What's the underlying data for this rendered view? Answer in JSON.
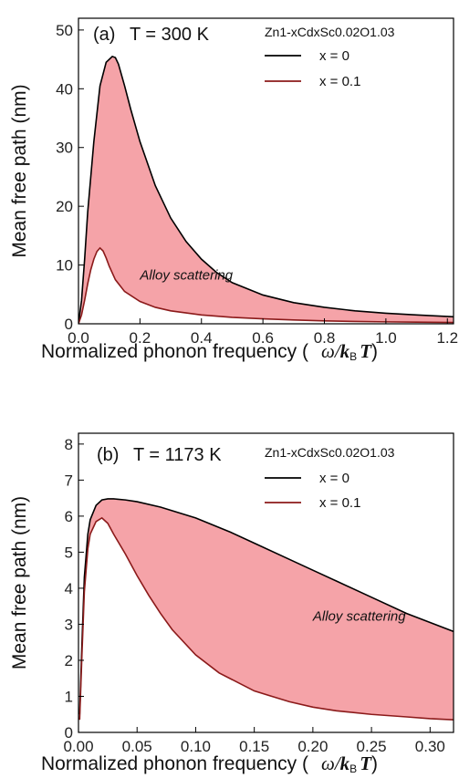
{
  "chart_data": [
    {
      "type": "area",
      "panel_label": "(a)",
      "condition": "T = 300 K",
      "legend_title": "Zn1-xCdxSc0.02O1.03",
      "ylabel": "Mean free path (nm)",
      "xlabel": "Normalized phonon frequency (",
      "xlabel_symbol": {
        "omega": "ω",
        "slash": "/",
        "k": "k",
        "sub": "B",
        "T": "T",
        "close": ")"
      },
      "xlim": [
        0,
        1.22
      ],
      "ylim": [
        0,
        52
      ],
      "xticks": [
        0,
        0.2,
        0.4,
        0.6,
        0.8,
        1.0,
        1.2
      ],
      "xtick_labels": [
        "0.0",
        "0.2",
        "0.4",
        "0.6",
        "0.8",
        "1.0",
        "1.2"
      ],
      "yticks": [
        0,
        10,
        20,
        30,
        40,
        50
      ],
      "ytick_labels": [
        "0",
        "10",
        "20",
        "30",
        "40",
        "50"
      ],
      "annotation": "Alloy scattering",
      "fill_color": "#f5a3a8",
      "series": [
        {
          "name": "x = 0",
          "color": "#000000",
          "x": [
            0,
            0.01,
            0.02,
            0.03,
            0.05,
            0.07,
            0.09,
            0.11,
            0.12,
            0.13,
            0.15,
            0.17,
            0.2,
            0.25,
            0.3,
            0.35,
            0.4,
            0.45,
            0.5,
            0.6,
            0.7,
            0.8,
            0.9,
            1.0,
            1.1,
            1.22
          ],
          "y": [
            0,
            4,
            11,
            19,
            31,
            40.5,
            44.5,
            45.5,
            45.3,
            44.2,
            40.5,
            36.5,
            31,
            23.5,
            18,
            14,
            11,
            8.7,
            7,
            4.9,
            3.6,
            2.8,
            2.2,
            1.8,
            1.5,
            1.2
          ]
        },
        {
          "name": "x = 0.1",
          "color": "#8b1a1a",
          "x": [
            0,
            0.01,
            0.02,
            0.03,
            0.04,
            0.05,
            0.06,
            0.07,
            0.08,
            0.09,
            0.1,
            0.12,
            0.15,
            0.2,
            0.25,
            0.3,
            0.4,
            0.5,
            0.6,
            0.7,
            0.8,
            0.9,
            1.0,
            1.1,
            1.22
          ],
          "y": [
            0,
            1.5,
            4,
            6.8,
            9.2,
            11,
            12.3,
            12.9,
            12.4,
            11.2,
            9.8,
            7.5,
            5.5,
            3.8,
            2.8,
            2.2,
            1.5,
            1.1,
            0.85,
            0.65,
            0.5,
            0.4,
            0.33,
            0.28,
            0.22
          ]
        }
      ]
    },
    {
      "type": "area",
      "panel_label": "(b)",
      "condition": "T = 1173 K",
      "legend_title": "Zn1-xCdxSc0.02O1.03",
      "ylabel": "Mean free path (nm)",
      "xlabel": "Normalized phonon frequency (",
      "xlabel_symbol": {
        "omega": "ω",
        "slash": "/",
        "k": "k",
        "sub": "B",
        "T": "T",
        "close": ")"
      },
      "xlim": [
        0,
        0.32
      ],
      "ylim": [
        0,
        8.3
      ],
      "xticks": [
        0,
        0.05,
        0.1,
        0.15,
        0.2,
        0.25,
        0.3
      ],
      "xtick_labels": [
        "0.00",
        "0.05",
        "0.10",
        "0.15",
        "0.20",
        "0.25",
        "0.30"
      ],
      "yticks": [
        0,
        1,
        2,
        3,
        4,
        5,
        6,
        7,
        8
      ],
      "ytick_labels": [
        "0",
        "1",
        "2",
        "3",
        "4",
        "5",
        "6",
        "7",
        "8"
      ],
      "annotation": "Alloy scattering",
      "fill_color": "#f5a3a8",
      "series": [
        {
          "name": "x = 0",
          "color": "#000000",
          "x": [
            0.001,
            0.003,
            0.005,
            0.008,
            0.01,
            0.015,
            0.02,
            0.025,
            0.03,
            0.04,
            0.05,
            0.07,
            0.1,
            0.13,
            0.15,
            0.18,
            0.2,
            0.22,
            0.25,
            0.28,
            0.3,
            0.32
          ],
          "y": [
            0.5,
            2.5,
            4.3,
            5.5,
            5.9,
            6.3,
            6.45,
            6.48,
            6.48,
            6.45,
            6.4,
            6.25,
            5.95,
            5.55,
            5.25,
            4.8,
            4.5,
            4.2,
            3.75,
            3.3,
            3.05,
            2.8
          ]
        },
        {
          "name": "x = 0.1",
          "color": "#8b1a1a",
          "x": [
            0.001,
            0.003,
            0.005,
            0.008,
            0.01,
            0.015,
            0.02,
            0.025,
            0.03,
            0.04,
            0.05,
            0.06,
            0.07,
            0.08,
            0.1,
            0.12,
            0.15,
            0.18,
            0.2,
            0.22,
            0.25,
            0.28,
            0.3,
            0.32
          ],
          "y": [
            0.35,
            2.2,
            3.9,
            5.1,
            5.5,
            5.85,
            5.95,
            5.8,
            5.5,
            4.95,
            4.35,
            3.8,
            3.3,
            2.85,
            2.15,
            1.65,
            1.15,
            0.85,
            0.7,
            0.6,
            0.5,
            0.43,
            0.38,
            0.35
          ]
        }
      ]
    }
  ]
}
